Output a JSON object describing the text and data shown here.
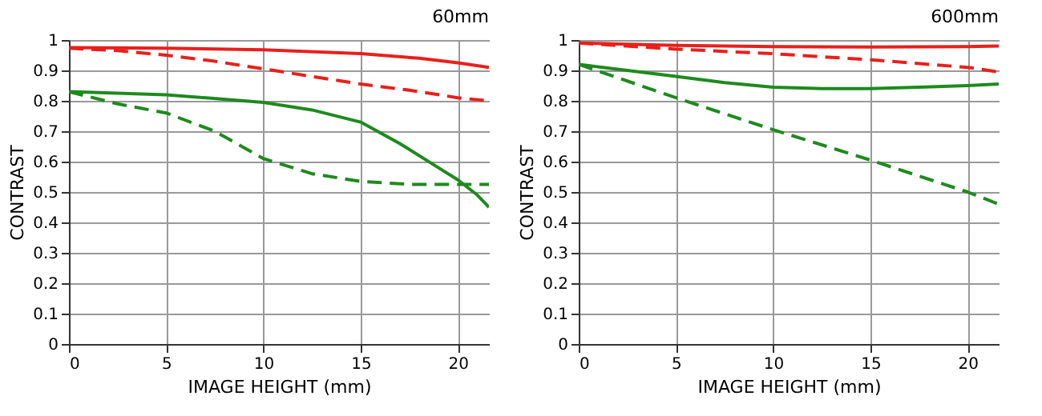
{
  "chart_data": [
    {
      "type": "line",
      "title": "60mm",
      "xlabel": "IMAGE HEIGHT (mm)",
      "ylabel": "CONTRAST",
      "xlim": [
        0,
        21.6
      ],
      "ylim": [
        0,
        1
      ],
      "xticks": [
        0,
        5,
        10,
        15,
        20
      ],
      "yticks": [
        0,
        0.1,
        0.2,
        0.3,
        0.4,
        0.5,
        0.6,
        0.7,
        0.8,
        0.9,
        1
      ],
      "grid": true,
      "series": [
        {
          "color": "#e8201c",
          "line_style": "solid",
          "x": [
            0,
            5,
            10,
            15,
            18,
            20,
            21.6
          ],
          "values": [
            0.975,
            0.973,
            0.968,
            0.955,
            0.94,
            0.925,
            0.91
          ]
        },
        {
          "color": "#e8201c",
          "line_style": "dashed",
          "x": [
            0,
            2.5,
            5,
            7.5,
            10,
            12.5,
            15,
            17.5,
            20,
            21.6
          ],
          "values": [
            0.973,
            0.965,
            0.95,
            0.93,
            0.905,
            0.88,
            0.855,
            0.835,
            0.81,
            0.8
          ]
        },
        {
          "color": "#1e8a1e",
          "line_style": "solid",
          "x": [
            0,
            5,
            10,
            12.5,
            15,
            17,
            19,
            20,
            21,
            21.6
          ],
          "values": [
            0.83,
            0.82,
            0.795,
            0.77,
            0.73,
            0.66,
            0.58,
            0.54,
            0.49,
            0.45
          ]
        },
        {
          "color": "#1e8a1e",
          "line_style": "dashed",
          "x": [
            0,
            2.5,
            5,
            7.5,
            10,
            12.5,
            15,
            17.5,
            20,
            21.6
          ],
          "values": [
            0.83,
            0.79,
            0.76,
            0.7,
            0.61,
            0.56,
            0.535,
            0.525,
            0.525,
            0.525
          ]
        }
      ]
    },
    {
      "type": "line",
      "title": "600mm",
      "xlabel": "IMAGE HEIGHT (mm)",
      "ylabel": "CONTRAST",
      "xlim": [
        0,
        21.6
      ],
      "ylim": [
        0,
        1
      ],
      "xticks": [
        0,
        5,
        10,
        15,
        20
      ],
      "yticks": [
        0,
        0.1,
        0.2,
        0.3,
        0.4,
        0.5,
        0.6,
        0.7,
        0.8,
        0.9,
        1
      ],
      "grid": true,
      "series": [
        {
          "color": "#e8201c",
          "line_style": "solid",
          "x": [
            0,
            5,
            10,
            15,
            20,
            21.6
          ],
          "values": [
            0.99,
            0.982,
            0.978,
            0.977,
            0.978,
            0.98
          ]
        },
        {
          "color": "#e8201c",
          "line_style": "dashed",
          "x": [
            0,
            5,
            10,
            15,
            20,
            21.6
          ],
          "values": [
            0.99,
            0.97,
            0.955,
            0.935,
            0.91,
            0.895
          ]
        },
        {
          "color": "#1e8a1e",
          "line_style": "solid",
          "x": [
            0,
            2.5,
            5,
            7.5,
            10,
            12.5,
            15,
            17.5,
            20,
            21.6
          ],
          "values": [
            0.92,
            0.9,
            0.88,
            0.86,
            0.845,
            0.84,
            0.84,
            0.845,
            0.85,
            0.855
          ]
        },
        {
          "color": "#1e8a1e",
          "line_style": "dashed",
          "x": [
            0,
            5,
            10,
            15,
            20,
            21.6
          ],
          "values": [
            0.92,
            0.81,
            0.705,
            0.605,
            0.5,
            0.46
          ]
        }
      ]
    }
  ]
}
